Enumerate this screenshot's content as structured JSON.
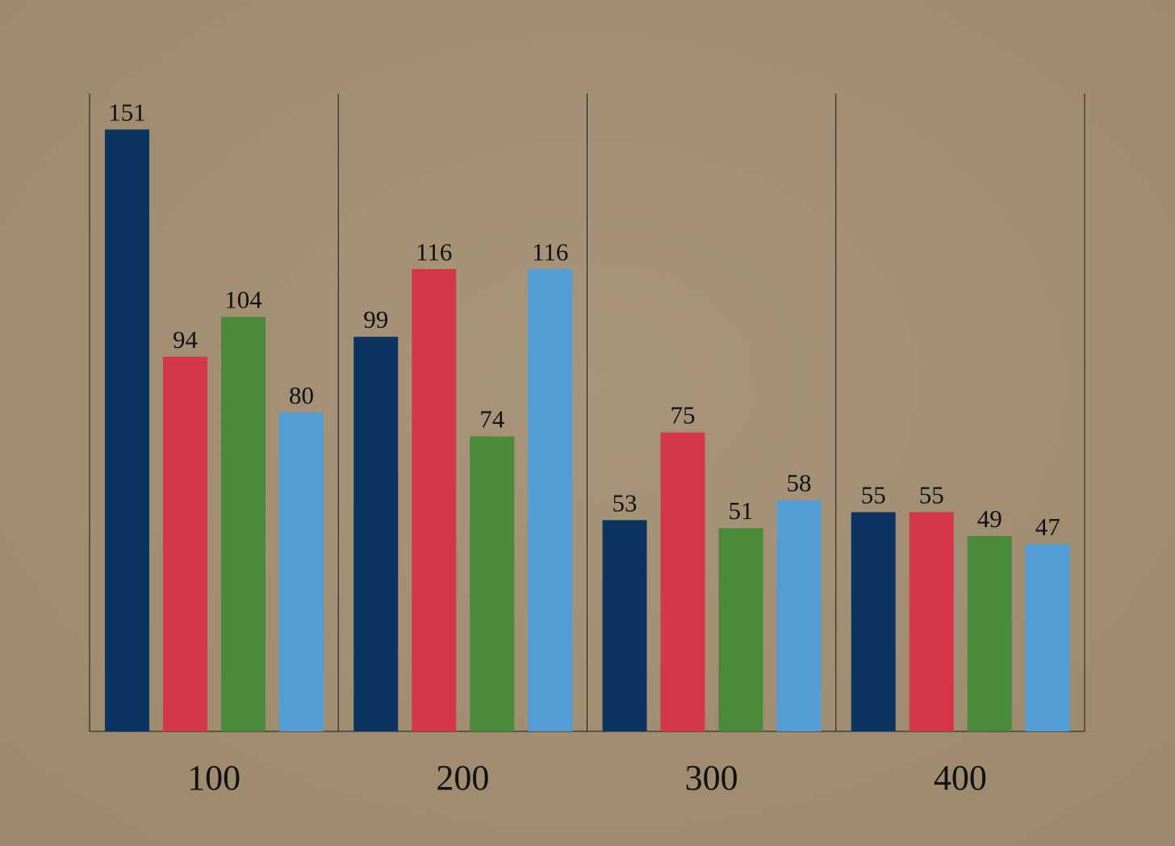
{
  "chart_data": {
    "type": "bar",
    "categories": [
      "100",
      "200",
      "300",
      "400"
    ],
    "series": [
      {
        "color": "#0c3461",
        "values": [
          151,
          99,
          53,
          55
        ]
      },
      {
        "color": "#d4364a",
        "values": [
          94,
          116,
          75,
          55
        ]
      },
      {
        "color": "#4b8a3b",
        "values": [
          104,
          74,
          51,
          49
        ]
      },
      {
        "color": "#529dd5",
        "values": [
          80,
          116,
          58,
          47
        ]
      }
    ],
    "ylim": [
      0,
      160
    ]
  }
}
